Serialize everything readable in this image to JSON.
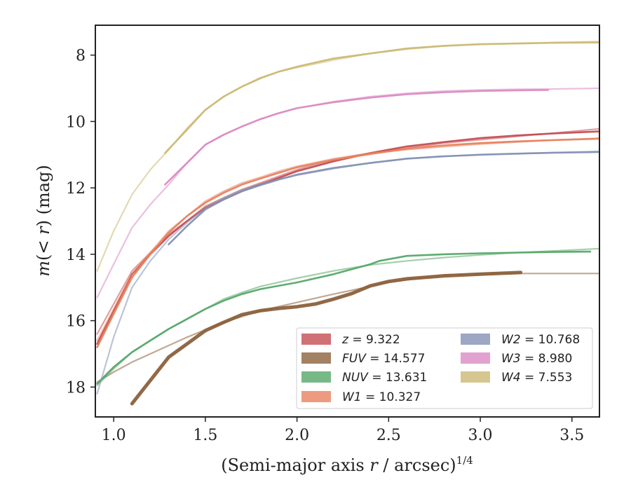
{
  "chart_data": {
    "type": "line",
    "title": "",
    "xlabel": "(Semi-major axis r / arcsec)^{1/4}",
    "ylabel": "m(< r) (mag)",
    "xlim": [
      0.9,
      3.65
    ],
    "ylim": [
      18.9,
      7.1
    ],
    "y_inverted": true,
    "xticks": [
      "1.0",
      "1.5",
      "2.0",
      "2.5",
      "3.0",
      "3.5"
    ],
    "yticks": [
      "8",
      "10",
      "12",
      "14",
      "16",
      "18"
    ],
    "xtick_values": [
      1.0,
      1.5,
      2.0,
      2.5,
      3.0,
      3.5
    ],
    "ytick_values": [
      8,
      10,
      12,
      14,
      16,
      18
    ],
    "grid": false,
    "legend_position": "lower-right",
    "legend_columns": 2,
    "series": [
      {
        "label": "z = 9.322",
        "color": "#c44e52",
        "curves": [
          {
            "x": [
              0.91,
              1.0,
              1.1,
              1.2,
              1.3,
              1.4,
              1.5,
              1.6,
              1.7,
              1.8,
              1.9,
              2.0,
              2.2,
              2.4,
              2.6,
              2.8,
              3.0,
              3.2,
              3.4,
              3.65
            ],
            "y": [
              16.7,
              15.7,
              14.6,
              14.0,
              13.45,
              13.0,
              12.6,
              12.35,
              12.1,
              11.9,
              11.7,
              11.5,
              11.2,
              10.95,
              10.75,
              10.62,
              10.5,
              10.42,
              10.36,
              10.3
            ]
          },
          {
            "x": [
              0.91,
              1.0,
              1.1,
              1.2,
              1.3,
              1.4,
              1.5,
              1.6,
              1.7,
              1.8,
              1.9,
              2.0,
              2.2,
              2.4,
              2.6,
              2.8,
              3.0,
              3.2,
              3.4,
              3.65
            ],
            "y": [
              16.4,
              15.5,
              14.5,
              13.95,
              13.4,
              13.0,
              12.55,
              12.3,
              12.05,
              11.85,
              11.65,
              11.45,
              11.15,
              10.95,
              10.8,
              10.65,
              10.55,
              10.45,
              10.35,
              10.22
            ]
          }
        ]
      },
      {
        "label": "FUV = 14.577",
        "color": "#8c613c",
        "curves": [
          {
            "x": [
              1.1,
              1.2,
              1.3,
              1.4,
              1.5,
              1.6,
              1.7,
              1.8,
              1.9,
              2.0,
              2.1,
              2.2,
              2.3,
              2.4,
              2.5,
              2.6,
              2.8,
              3.0,
              3.22
            ],
            "y": [
              18.5,
              17.8,
              17.1,
              16.7,
              16.3,
              16.05,
              15.82,
              15.7,
              15.63,
              15.58,
              15.5,
              15.35,
              15.18,
              14.95,
              14.82,
              14.74,
              14.65,
              14.6,
              14.55
            ]
          },
          {
            "x": [
              0.91,
              1.0,
              1.1,
              1.2,
              1.4,
              1.6,
              1.8,
              2.0,
              2.2,
              2.5,
              2.8,
              3.0,
              3.2,
              3.65
            ],
            "y": [
              17.85,
              17.55,
              17.25,
              17.0,
              16.5,
              16.05,
              15.7,
              15.45,
              15.2,
              14.85,
              14.62,
              14.58,
              14.58,
              14.58
            ]
          }
        ]
      },
      {
        "label": "NUV = 13.631",
        "color": "#55a868",
        "curves": [
          {
            "x": [
              0.91,
              1.0,
              1.1,
              1.2,
              1.3,
              1.4,
              1.5,
              1.6,
              1.7,
              1.8,
              2.0,
              2.2,
              2.4,
              2.45,
              2.6,
              2.8,
              3.0,
              3.2,
              3.4,
              3.6
            ],
            "y": [
              17.9,
              17.4,
              16.95,
              16.6,
              16.25,
              15.95,
              15.65,
              15.4,
              15.2,
              15.05,
              14.85,
              14.6,
              14.3,
              14.2,
              14.05,
              14.0,
              13.97,
              13.95,
              13.93,
              13.92
            ]
          },
          {
            "x": [
              0.91,
              1.0,
              1.1,
              1.2,
              1.3,
              1.4,
              1.5,
              1.6,
              1.7,
              1.8,
              2.0,
              2.2,
              2.4,
              2.6,
              2.8,
              3.0,
              3.2,
              3.4,
              3.65
            ],
            "y": [
              17.95,
              17.45,
              16.95,
              16.6,
              16.25,
              15.95,
              15.65,
              15.35,
              15.15,
              14.97,
              14.72,
              14.5,
              14.32,
              14.2,
              14.1,
              14.02,
              13.95,
              13.9,
              13.83
            ]
          }
        ]
      },
      {
        "label": "W1 = 10.327",
        "color": "#e8825f",
        "curves": [
          {
            "x": [
              0.91,
              1.0,
              1.1,
              1.2,
              1.3,
              1.4,
              1.5,
              1.6,
              1.7,
              1.8,
              1.9,
              2.0,
              2.2,
              2.4,
              2.6,
              2.8,
              3.0,
              3.2,
              3.4,
              3.65
            ],
            "y": [
              16.8,
              15.8,
              14.7,
              14.0,
              13.35,
              12.85,
              12.45,
              12.15,
              11.9,
              11.72,
              11.55,
              11.38,
              11.15,
              10.98,
              10.82,
              10.72,
              10.65,
              10.6,
              10.56,
              10.52
            ]
          },
          {
            "x": [
              0.91,
              1.0,
              1.1,
              1.2,
              1.3,
              1.4,
              1.5,
              1.6,
              1.7,
              1.8,
              1.9,
              2.0,
              2.2,
              2.4,
              2.6,
              2.8,
              3.0,
              3.2,
              3.4,
              3.65
            ],
            "y": [
              16.6,
              15.65,
              14.6,
              13.95,
              13.3,
              12.85,
              12.4,
              12.1,
              11.85,
              11.68,
              11.5,
              11.35,
              11.12,
              10.95,
              10.85,
              10.76,
              10.68,
              10.62,
              10.56,
              10.5
            ]
          }
        ]
      },
      {
        "label": "W2 = 10.768",
        "color": "#8491b4",
        "curves": [
          {
            "x": [
              1.3,
              1.4,
              1.5,
              1.6,
              1.7,
              1.8,
              1.9,
              2.0,
              2.2,
              2.4,
              2.6,
              2.8,
              3.0,
              3.2,
              3.4,
              3.65
            ],
            "y": [
              13.7,
              13.15,
              12.65,
              12.35,
              12.1,
              11.92,
              11.75,
              11.6,
              11.4,
              11.25,
              11.12,
              11.05,
              11.0,
              10.97,
              10.94,
              10.92
            ]
          },
          {
            "x": [
              0.91,
              1.0,
              1.1,
              1.2,
              1.3,
              1.4,
              1.5,
              1.6,
              1.7,
              1.8,
              2.0,
              2.2,
              2.4,
              2.6,
              2.8,
              3.0,
              3.2,
              3.4,
              3.65
            ],
            "y": [
              18.2,
              16.5,
              15.0,
              14.2,
              13.55,
              13.05,
              12.6,
              12.3,
              12.05,
              11.88,
              11.62,
              11.42,
              11.25,
              11.12,
              11.05,
              11.0,
              10.97,
              10.94,
              10.9
            ]
          }
        ]
      },
      {
        "label": "W3 = 8.980",
        "color": "#da8bc3",
        "curves": [
          {
            "x": [
              1.28,
              1.4,
              1.5,
              1.6,
              1.7,
              1.8,
              1.9,
              2.0,
              2.2,
              2.4,
              2.6,
              2.8,
              3.0,
              3.2,
              3.37
            ],
            "y": [
              11.9,
              11.25,
              10.7,
              10.4,
              10.15,
              9.93,
              9.75,
              9.6,
              9.42,
              9.28,
              9.18,
              9.12,
              9.08,
              9.06,
              9.05
            ]
          },
          {
            "x": [
              0.91,
              1.0,
              1.1,
              1.2,
              1.3,
              1.4,
              1.5,
              1.6,
              1.7,
              1.8,
              1.9,
              2.0,
              2.2,
              2.4,
              2.6,
              2.8,
              3.0,
              3.2,
              3.4,
              3.65
            ],
            "y": [
              15.3,
              14.3,
              13.2,
              12.5,
              11.9,
              11.25,
              10.7,
              10.4,
              10.15,
              9.93,
              9.75,
              9.6,
              9.4,
              9.25,
              9.15,
              9.08,
              9.05,
              9.03,
              9.02,
              9.0
            ]
          }
        ]
      },
      {
        "label": "W4 = 7.553",
        "color": "#ccb974",
        "curves": [
          {
            "x": [
              1.28,
              1.4,
              1.5,
              1.6,
              1.7,
              1.8,
              1.9,
              2.0,
              2.2,
              2.4,
              2.6,
              2.8,
              3.0,
              3.2,
              3.4,
              3.65
            ],
            "y": [
              10.95,
              10.25,
              9.65,
              9.25,
              8.95,
              8.7,
              8.5,
              8.35,
              8.1,
              7.95,
              7.8,
              7.72,
              7.67,
              7.65,
              7.63,
              7.62
            ]
          },
          {
            "x": [
              0.91,
              1.0,
              1.1,
              1.2,
              1.3,
              1.4,
              1.5,
              1.6,
              1.7,
              1.8,
              1.9,
              2.0,
              2.2,
              2.4,
              2.6,
              2.8,
              3.0,
              3.2,
              3.4,
              3.65
            ],
            "y": [
              14.5,
              13.3,
              12.2,
              11.45,
              10.85,
              10.2,
              9.65,
              9.25,
              8.95,
              8.68,
              8.5,
              8.38,
              8.15,
              7.95,
              7.82,
              7.73,
              7.68,
              7.65,
              7.62,
              7.59
            ]
          }
        ]
      }
    ]
  }
}
